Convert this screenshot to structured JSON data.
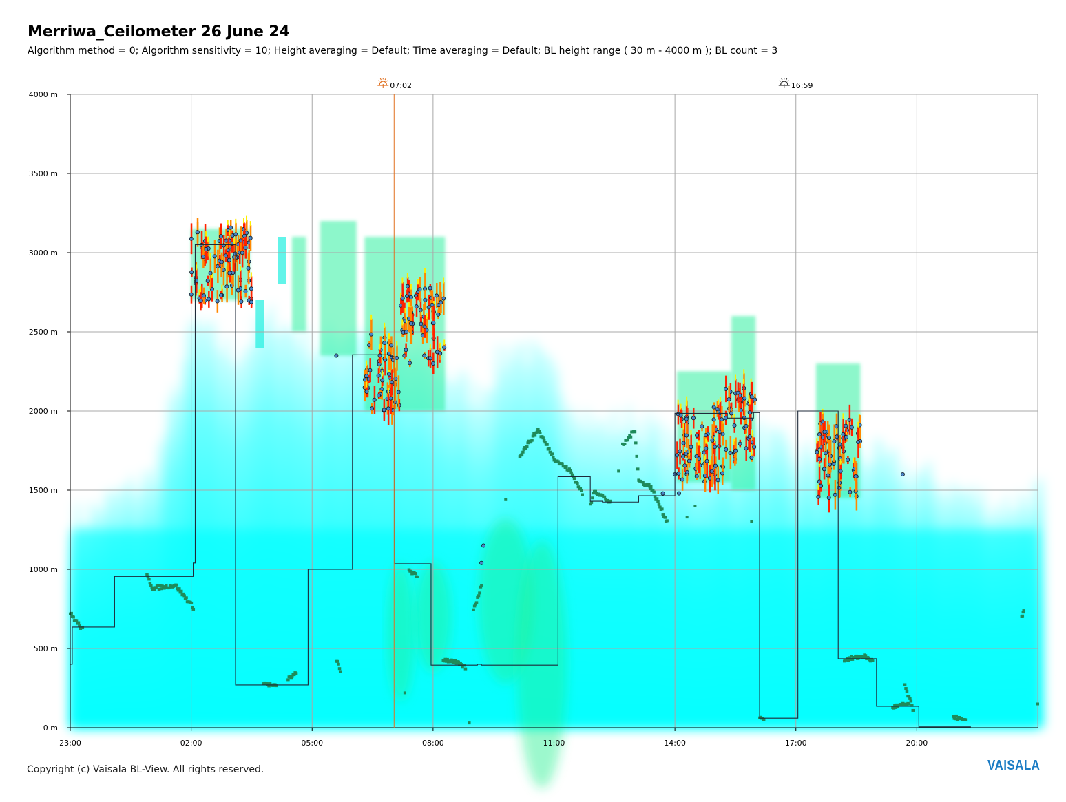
{
  "header": {
    "title": "Merriwa_Ceilometer 26 June 24",
    "subtitle": "Algorithm method = 0; Algorithm sensitivity = 10; Height averaging = Default; Time averaging = Default; BL height range ( 30 m - 4000 m ); BL count = 3"
  },
  "footer": {
    "copyright": "Copyright (c) Vaisala BL-View. All rights reserved.",
    "brand": "VAISALA"
  },
  "colors": {
    "background_signal": "#00ffff",
    "strong_signal": "#ff2000",
    "cloud_marker": "#3a6ea5",
    "bl_marker": "#1f8a5a",
    "step_line": "#1e2a3a",
    "grid": "#a8a8a8",
    "sunrise": "#e07020",
    "sunset": "#333333"
  },
  "chart_data": {
    "type": "heatmap",
    "title": "Merriwa_Ceilometer 26 June 24",
    "xlabel": "",
    "ylabel": "",
    "x_ticks": [
      "23:00",
      "02:00",
      "05:00",
      "08:00",
      "11:00",
      "14:00",
      "17:00",
      "20:00"
    ],
    "y_ticks": [
      "0 m",
      "500 m",
      "1000 m",
      "1500 m",
      "2000 m",
      "2500 m",
      "3000 m",
      "3500 m",
      "4000 m"
    ],
    "x_range_hours": [
      23,
      47
    ],
    "y_range_m": [
      0,
      4000
    ],
    "grid": true,
    "sun_events": [
      {
        "type": "sunrise",
        "label": "07:02",
        "time_hours": 31.033
      },
      {
        "type": "sunset",
        "label": "16:59",
        "time_hours": 40.983
      }
    ],
    "bl_height_step_line": [
      {
        "t": 23.0,
        "h": 400
      },
      {
        "t": 23.05,
        "h": 635
      },
      {
        "t": 24.1,
        "h": 955
      },
      {
        "t": 26.05,
        "h": 1040
      },
      {
        "t": 26.1,
        "h": 3050
      },
      {
        "t": 27.1,
        "h": 270
      },
      {
        "t": 28.9,
        "h": 1000
      },
      {
        "t": 30.0,
        "h": 2355
      },
      {
        "t": 30.95,
        "h": 2345
      },
      {
        "t": 31.05,
        "h": 1035
      },
      {
        "t": 31.95,
        "h": 395
      },
      {
        "t": 32.05,
        "h": 395
      },
      {
        "t": 33.1,
        "h": 400
      },
      {
        "t": 33.2,
        "h": 395
      },
      {
        "t": 35.1,
        "h": 1585
      },
      {
        "t": 35.9,
        "h": 1430
      },
      {
        "t": 36.2,
        "h": 1425
      },
      {
        "t": 37.1,
        "h": 1465
      },
      {
        "t": 37.8,
        "h": 1465
      },
      {
        "t": 38.0,
        "h": 1985
      },
      {
        "t": 39.3,
        "h": 1955
      },
      {
        "t": 39.95,
        "h": 1990
      },
      {
        "t": 40.1,
        "h": 60
      },
      {
        "t": 41.05,
        "h": 2000
      },
      {
        "t": 42.05,
        "h": 435
      },
      {
        "t": 43.0,
        "h": 135
      },
      {
        "t": 44.05,
        "h": 5
      },
      {
        "t": 45.0,
        "h": 5
      }
    ],
    "cloud_base_clusters": [
      {
        "t_start": 26.0,
        "t_end": 27.5,
        "h_center": 2920
      },
      {
        "t_start": 30.3,
        "t_end": 31.2,
        "h_center": 2250
      },
      {
        "t_start": 31.2,
        "t_end": 32.3,
        "h_center": 2550
      },
      {
        "t_start": 38.05,
        "t_end": 39.2,
        "h_center": 1800
      },
      {
        "t_start": 39.2,
        "t_end": 40.0,
        "h_center": 1900
      },
      {
        "t_start": 41.5,
        "t_end": 42.6,
        "h_center": 1700
      }
    ]
  }
}
